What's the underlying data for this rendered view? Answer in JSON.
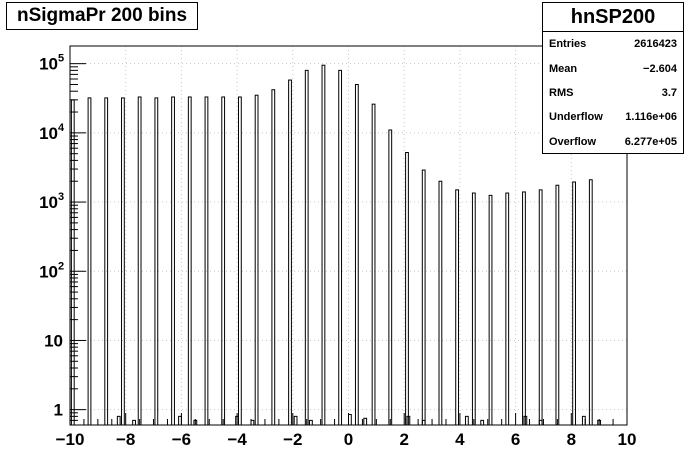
{
  "title": "nSigmaPr 200 bins",
  "stats": {
    "name": "hnSP200",
    "rows": [
      {
        "label": "Entries",
        "value": "2616423"
      },
      {
        "label": "Mean",
        "value": "−2.604"
      },
      {
        "label": "RMS",
        "value": "3.7"
      },
      {
        "label": "Underflow",
        "value": "1.116e+06"
      },
      {
        "label": "Overflow",
        "value": "6.277e+05"
      }
    ]
  },
  "chart_data": {
    "type": "bar",
    "title": "nSigmaPr 200 bins",
    "xlabel": "",
    "ylabel": "",
    "xlim": [
      -10,
      10
    ],
    "ylim": [
      0.6,
      180000
    ],
    "yscale": "log",
    "grid": true,
    "bins": 200,
    "x_ticks": [
      "−10",
      "−8",
      "−6",
      "−4",
      "−2",
      "0",
      "2",
      "4",
      "6",
      "8",
      "10"
    ],
    "y_ticks": [
      {
        "value": 1,
        "label": "1",
        "exp": ""
      },
      {
        "value": 10,
        "label": "10",
        "exp": ""
      },
      {
        "value": 100,
        "label": "10",
        "exp": "2"
      },
      {
        "value": 1000,
        "label": "10",
        "exp": "3"
      },
      {
        "value": 10000,
        "label": "10",
        "exp": "4"
      },
      {
        "value": 100000,
        "label": "10",
        "exp": "5"
      }
    ],
    "tall_bars": [
      {
        "x": -9.95,
        "y": 30000
      },
      {
        "x": -9.35,
        "y": 32000
      },
      {
        "x": -8.75,
        "y": 32000
      },
      {
        "x": -8.15,
        "y": 32000
      },
      {
        "x": -7.55,
        "y": 33000
      },
      {
        "x": -6.95,
        "y": 32000
      },
      {
        "x": -6.35,
        "y": 33000
      },
      {
        "x": -5.75,
        "y": 33000
      },
      {
        "x": -5.15,
        "y": 33000
      },
      {
        "x": -4.55,
        "y": 33000
      },
      {
        "x": -3.95,
        "y": 33000
      },
      {
        "x": -3.35,
        "y": 35000
      },
      {
        "x": -2.75,
        "y": 42000
      },
      {
        "x": -2.15,
        "y": 58000
      },
      {
        "x": -1.55,
        "y": 80000
      },
      {
        "x": -0.95,
        "y": 95000
      },
      {
        "x": -0.35,
        "y": 80000
      },
      {
        "x": 0.25,
        "y": 50000
      },
      {
        "x": 0.85,
        "y": 26000
      },
      {
        "x": 1.45,
        "y": 11000
      },
      {
        "x": 2.05,
        "y": 5200
      },
      {
        "x": 2.65,
        "y": 2900
      },
      {
        "x": 3.25,
        "y": 2000
      },
      {
        "x": 3.85,
        "y": 1500
      },
      {
        "x": 4.45,
        "y": 1350
      },
      {
        "x": 5.05,
        "y": 1250
      },
      {
        "x": 5.65,
        "y": 1350
      },
      {
        "x": 6.25,
        "y": 1400
      },
      {
        "x": 6.85,
        "y": 1500
      },
      {
        "x": 7.45,
        "y": 1750
      },
      {
        "x": 8.05,
        "y": 1950
      },
      {
        "x": 8.65,
        "y": 2100
      }
    ],
    "short_bars": [
      {
        "x": -8.3,
        "y": 0.8
      },
      {
        "x": -7.75,
        "y": 0.7
      },
      {
        "x": -6.1,
        "y": 0.8
      },
      {
        "x": -5.55,
        "y": 0.7
      },
      {
        "x": -4.05,
        "y": 0.8
      },
      {
        "x": -3.5,
        "y": 0.7
      },
      {
        "x": -1.95,
        "y": 0.8
      },
      {
        "x": -1.4,
        "y": 0.7
      },
      {
        "x": 0.0,
        "y": 0.85
      },
      {
        "x": 0.55,
        "y": 0.75
      },
      {
        "x": 2.1,
        "y": 0.8
      },
      {
        "x": 2.65,
        "y": 0.7
      },
      {
        "x": 4.2,
        "y": 0.8
      },
      {
        "x": 4.75,
        "y": 0.7
      },
      {
        "x": 6.3,
        "y": 0.8
      },
      {
        "x": 6.85,
        "y": 0.7
      },
      {
        "x": 8.4,
        "y": 0.8
      },
      {
        "x": 8.95,
        "y": 0.7
      }
    ]
  }
}
